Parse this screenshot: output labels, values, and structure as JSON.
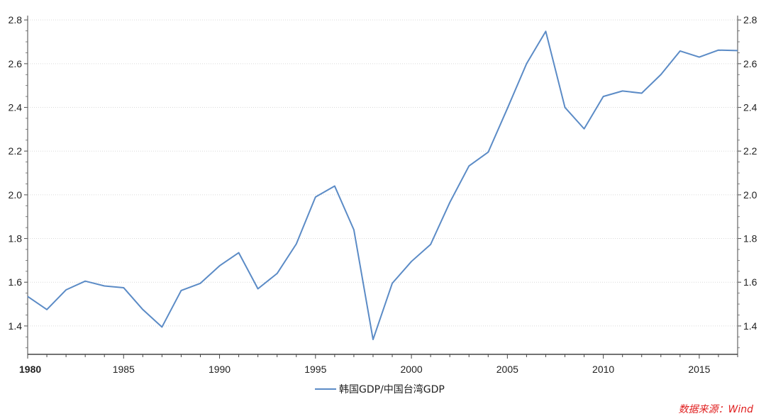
{
  "chart_data": {
    "type": "line",
    "x_years": [
      1980,
      1981,
      1982,
      1983,
      1984,
      1985,
      1986,
      1987,
      1988,
      1989,
      1990,
      1991,
      1992,
      1993,
      1994,
      1995,
      1996,
      1997,
      1998,
      1999,
      2000,
      2001,
      2002,
      2003,
      2004,
      2005,
      2006,
      2007,
      2008,
      2009,
      2010,
      2011,
      2012,
      2013,
      2014,
      2015,
      2016,
      2017
    ],
    "series": [
      {
        "name": "韩国GDP/中国台湾GDP",
        "color": "#5b8bc6",
        "values": [
          1.535,
          1.475,
          1.565,
          1.605,
          1.583,
          1.575,
          1.475,
          1.395,
          1.562,
          1.595,
          1.675,
          1.735,
          1.57,
          1.64,
          1.775,
          1.99,
          2.04,
          1.84,
          1.338,
          1.595,
          1.695,
          1.773,
          1.965,
          2.132,
          2.195,
          2.395,
          2.6,
          2.748,
          2.4,
          2.302,
          2.45,
          2.475,
          2.465,
          2.55,
          2.658,
          2.63,
          2.662,
          2.66
        ]
      }
    ],
    "x_ticks": [
      "1980",
      "1985",
      "1990",
      "1995",
      "2000",
      "2005",
      "2010",
      "2015"
    ],
    "x_tick_values": [
      1980,
      1985,
      1990,
      1995,
      2000,
      2005,
      2010,
      2015
    ],
    "xlim": [
      1980,
      2017
    ],
    "y_ticks": [
      "1.4",
      "1.6",
      "1.8",
      "2.0",
      "2.2",
      "2.4",
      "2.6",
      "2.8"
    ],
    "y_tick_values": [
      1.4,
      1.6,
      1.8,
      2.0,
      2.2,
      2.4,
      2.6,
      2.8
    ],
    "ylim": [
      1.27,
      2.82
    ],
    "y_axis_both_sides": true,
    "grid": "horizontal-dotted",
    "legend_position": "bottom-center",
    "source": "数据来源：Wind",
    "source_color": "#e02020"
  }
}
